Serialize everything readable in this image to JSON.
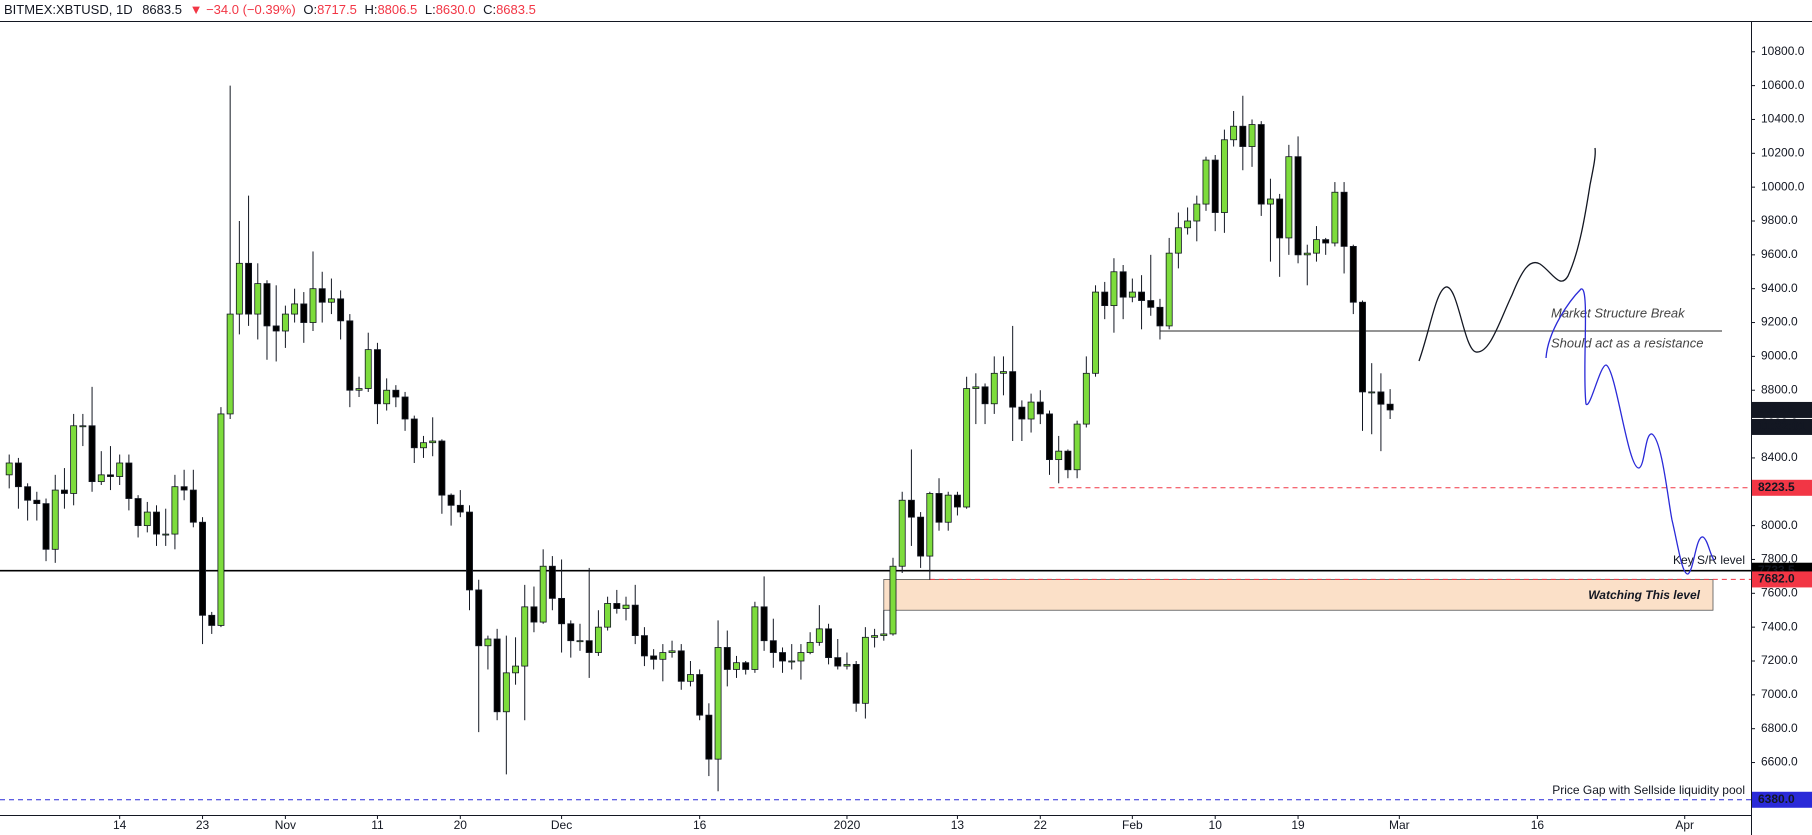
{
  "header": {
    "symbol": "BITMEX:XBTUSD, 1D",
    "price": "8683.5",
    "change": "▼ −34.0 (−0.39%)",
    "ohlc": [
      {
        "key": "O:",
        "value": "8717.5"
      },
      {
        "key": "H:",
        "value": "8806.5"
      },
      {
        "key": "L:",
        "value": "8630.0"
      },
      {
        "key": "C:",
        "value": "8683.5"
      }
    ]
  },
  "chart_data": {
    "type": "candlestick",
    "up_color": "#7ddc3c",
    "down_color": "#000000",
    "xlim": [
      -1,
      189.2
    ],
    "xticks": [
      {
        "value": 12,
        "label": "14"
      },
      {
        "value": 21,
        "label": "23"
      },
      {
        "value": 30,
        "label": "Nov"
      },
      {
        "value": 40,
        "label": "11"
      },
      {
        "value": 49,
        "label": "20"
      },
      {
        "value": 60,
        "label": "Dec"
      },
      {
        "value": 75,
        "label": "16"
      },
      {
        "value": 91,
        "label": "2020"
      },
      {
        "value": 103,
        "label": "13"
      },
      {
        "value": 112,
        "label": "22"
      },
      {
        "value": 122,
        "label": "Feb"
      },
      {
        "value": 131,
        "label": "10"
      },
      {
        "value": 140,
        "label": "19"
      },
      {
        "value": 151,
        "label": "Mar"
      },
      {
        "value": 166,
        "label": "16"
      },
      {
        "value": 182,
        "label": "Apr"
      }
    ],
    "ylim": [
      6290,
      10970
    ],
    "yticks": [
      {
        "value": 6600,
        "label": "6600.0"
      },
      {
        "value": 6800,
        "label": "6800.0"
      },
      {
        "value": 7000,
        "label": "7000.0"
      },
      {
        "value": 7200,
        "label": "7200.0"
      },
      {
        "value": 7400,
        "label": "7400.0"
      },
      {
        "value": 7600,
        "label": "7600.0"
      },
      {
        "value": 7800,
        "label": "7800.0"
      },
      {
        "value": 8000,
        "label": "8000.0"
      },
      {
        "value": 8200,
        "label": "8200.0"
      },
      {
        "value": 8400,
        "label": "8400.0"
      },
      {
        "value": 8600,
        "label": "8600.0"
      },
      {
        "value": 8800,
        "label": "8800.0"
      },
      {
        "value": 9000,
        "label": "9000.0"
      },
      {
        "value": 9200,
        "label": "9200.0"
      },
      {
        "value": 9400,
        "label": "9400.0"
      },
      {
        "value": 9600,
        "label": "9600.0"
      },
      {
        "value": 9800,
        "label": "9800.0"
      },
      {
        "value": 10000,
        "label": "10000.0"
      },
      {
        "value": 10200,
        "label": "10200.0"
      },
      {
        "value": 10400,
        "label": "10400.0"
      },
      {
        "value": 10600,
        "label": "10600.0"
      },
      {
        "value": 10800,
        "label": "10800.0"
      }
    ],
    "open": [
      8300,
      8370,
      8230,
      8150,
      8130,
      7860,
      8210,
      8190,
      8590,
      8590,
      8260,
      8300,
      8290,
      8370,
      8160,
      8000,
      8080,
      7950,
      7950,
      8230,
      8210,
      8020,
      7470,
      7410,
      8660,
      9250,
      9550,
      9250,
      9430,
      9180,
      9150,
      9250,
      9310,
      9200,
      9400,
      9320,
      9340,
      9210,
      8800,
      8810,
      9040,
      8720,
      8800,
      8760,
      8630,
      8460,
      8490,
      8500,
      8180,
      8120,
      8080,
      7620,
      7290,
      7330,
      6900,
      7130,
      7170,
      7520,
      7430,
      7760,
      7570,
      7420,
      7320,
      7320,
      7250,
      7400,
      7540,
      7510,
      7530,
      7350,
      7230,
      7210,
      7250,
      7260,
      7080,
      7120,
      6880,
      6620,
      7280,
      7150,
      7190,
      7150,
      7520,
      7320,
      7250,
      7200,
      7200,
      7250,
      7310,
      7390,
      7220,
      7170,
      7180,
      6950,
      7340,
      7350,
      7360,
      7760,
      8150,
      8050,
      7820,
      8190,
      8020,
      8180,
      8110,
      8810,
      8820,
      8720,
      8900,
      8910,
      8700,
      8630,
      8730,
      8660,
      8390,
      8440,
      8330,
      8600,
      8900,
      9380,
      9300,
      9500,
      9350,
      9380,
      9330,
      9290,
      9180,
      9610,
      9760,
      9800,
      9900,
      10160,
      9850,
      10280,
      10360,
      10240,
      10370,
      9900,
      9930,
      9700,
      10180,
      9600,
      9610,
      9690,
      9670,
      9970,
      9650,
      9320,
      8790,
      8790,
      8717.5
    ],
    "high": [
      8420,
      8400,
      8250,
      8200,
      8160,
      8300,
      8340,
      8660,
      8660,
      8820,
      8440,
      8470,
      8420,
      8420,
      8180,
      8140,
      8120,
      8100,
      8300,
      8330,
      8330,
      8050,
      7490,
      8700,
      10600,
      9800,
      9950,
      9550,
      9450,
      9420,
      9300,
      9400,
      9380,
      9620,
      9500,
      9460,
      9390,
      9250,
      8880,
      9140,
      9080,
      8870,
      8830,
      8790,
      8650,
      8530,
      8640,
      8510,
      8190,
      8210,
      8120,
      7680,
      7350,
      7390,
      7350,
      7340,
      7650,
      7640,
      7860,
      7820,
      7800,
      7440,
      7420,
      7750,
      7500,
      7580,
      7620,
      7580,
      7650,
      7400,
      7270,
      7300,
      7320,
      7300,
      7200,
      7150,
      6950,
      7440,
      7380,
      7230,
      7200,
      7550,
      7700,
      7450,
      7280,
      7300,
      7300,
      7370,
      7530,
      7420,
      7330,
      7250,
      7200,
      7400,
      7390,
      7500,
      7810,
      8200,
      8450,
      8080,
      8200,
      8280,
      8200,
      8200,
      8880,
      8900,
      8840,
      9000,
      9000,
      9180,
      8740,
      8780,
      8800,
      8680,
      8530,
      8450,
      8620,
      9000,
      9420,
      9440,
      9580,
      9540,
      9460,
      9480,
      9600,
      9340,
      9700,
      9850,
      9880,
      9950,
      10180,
      10190,
      10340,
      10450,
      10540,
      10400,
      10390,
      10050,
      9960,
      10250,
      10300,
      9660,
      9770,
      9700,
      10030,
      10030,
      9660,
      9330,
      8960,
      8900,
      8806.5
    ],
    "low": [
      8220,
      8100,
      8030,
      8030,
      7790,
      7780,
      8100,
      8120,
      8470,
      8200,
      8240,
      8210,
      8240,
      8090,
      7930,
      7960,
      7880,
      7880,
      7860,
      8150,
      7990,
      7300,
      7360,
      7400,
      8630,
      9130,
      9180,
      9100,
      8980,
      8970,
      9050,
      9200,
      9080,
      9150,
      9200,
      9250,
      9100,
      8700,
      8760,
      8790,
      8600,
      8680,
      8700,
      8560,
      8370,
      8400,
      8410,
      8070,
      8000,
      8050,
      7500,
      6780,
      7150,
      6850,
      6530,
      7060,
      6850,
      7370,
      7420,
      7500,
      7250,
      7220,
      7260,
      7100,
      7230,
      7380,
      7480,
      7440,
      7300,
      7170,
      7150,
      7080,
      7220,
      7030,
      7050,
      6850,
      6520,
      6430,
      7050,
      7100,
      7120,
      7130,
      7260,
      7160,
      7130,
      7150,
      7090,
      7240,
      7290,
      7180,
      7150,
      7150,
      6900,
      6860,
      7280,
      7320,
      7350,
      7720,
      7880,
      7750,
      7680,
      7970,
      7970,
      8060,
      8100,
      8600,
      8600,
      8660,
      8770,
      8500,
      8500,
      8550,
      8600,
      8300,
      8250,
      8280,
      8280,
      8580,
      8880,
      9220,
      9140,
      9220,
      9320,
      9160,
      9240,
      9100,
      9160,
      9520,
      9720,
      9680,
      9860,
      9740,
      9730,
      10240,
      10100,
      10120,
      9830,
      9560,
      9470,
      9600,
      9550,
      9420,
      9560,
      9600,
      9650,
      9490,
      9250,
      8560,
      8540,
      8440,
      8630
    ],
    "close": [
      8370,
      8230,
      8150,
      8130,
      7860,
      8210,
      8190,
      8590,
      8590,
      8260,
      8300,
      8290,
      8370,
      8160,
      8000,
      8080,
      7950,
      7950,
      8230,
      8210,
      8020,
      7470,
      7410,
      8660,
      9250,
      9550,
      9250,
      9430,
      9180,
      9150,
      9250,
      9310,
      9200,
      9400,
      9320,
      9340,
      9210,
      8800,
      8810,
      9040,
      8720,
      8800,
      8760,
      8630,
      8460,
      8490,
      8500,
      8180,
      8120,
      8080,
      7620,
      7290,
      7330,
      6900,
      7130,
      7170,
      7520,
      7430,
      7760,
      7570,
      7420,
      7320,
      7320,
      7250,
      7400,
      7540,
      7510,
      7530,
      7350,
      7230,
      7210,
      7250,
      7260,
      7080,
      7120,
      6880,
      6620,
      7280,
      7150,
      7190,
      7150,
      7520,
      7320,
      7250,
      7200,
      7200,
      7250,
      7310,
      7390,
      7220,
      7170,
      7180,
      6950,
      7340,
      7350,
      7360,
      7760,
      8150,
      8050,
      7820,
      8190,
      8020,
      8180,
      8110,
      8810,
      8820,
      8720,
      8900,
      8910,
      8700,
      8630,
      8730,
      8660,
      8390,
      8440,
      8330,
      8600,
      8900,
      9380,
      9300,
      9500,
      9350,
      9380,
      9330,
      9290,
      9180,
      9610,
      9760,
      9800,
      9900,
      10160,
      9850,
      10280,
      10360,
      10240,
      10370,
      9900,
      9930,
      9700,
      10180,
      9600,
      9610,
      9690,
      9670,
      9970,
      9650,
      9320,
      8790,
      8790,
      8717.5,
      8683.5
    ],
    "last_price": 8683.5,
    "countdown": "11:22:01",
    "levels": [
      {
        "value": 8223.5,
        "color": "#f23645",
        "dashed": true
      },
      {
        "value": 7733.5,
        "color": "#000000",
        "dashed": false
      },
      {
        "value": 7682,
        "label": "7682.0",
        "color": "#f23645",
        "dashed": true
      },
      {
        "value": 6380,
        "label": "6380.0",
        "color": "#2a2ad8",
        "dashed": true
      }
    ],
    "market_structure_level": 9150,
    "zone": {
      "top": 7682,
      "bottom": 7500,
      "label": "Watching This level"
    },
    "annotations": {
      "msb": "Market Structure Break",
      "resistance": "Should act as a resistance",
      "key": "Key S/R level",
      "gap": "Price Gap with Sellside liquidity pool"
    }
  }
}
